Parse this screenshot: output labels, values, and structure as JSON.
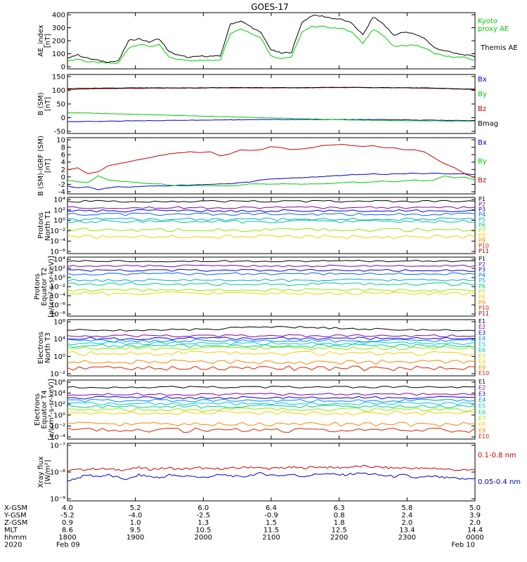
{
  "title": "GOES-17",
  "colors": {
    "black": "#000000",
    "green": "#00cc00",
    "blue": "#0000cc",
    "red": "#cc0000",
    "p_channels": [
      "#000000",
      "#8800aa",
      "#0000dd",
      "#0066ff",
      "#00aacc",
      "#00cc88",
      "#88ee00",
      "#ffcc00",
      "#ff8800",
      "#dd2200",
      "#990000"
    ],
    "e_channels": [
      "#000000",
      "#8800aa",
      "#0000dd",
      "#0088ff",
      "#00cccc",
      "#00cc88",
      "#88ee00",
      "#ffcc00",
      "#ff8800",
      "#dd2200",
      "#990000"
    ]
  },
  "chart_data": [
    {
      "type": "line",
      "ylabel": "AE_index\n[nT]",
      "yticks": [
        "400",
        "300",
        "200",
        "100",
        "0"
      ],
      "ylim": [
        0,
        400
      ],
      "series": [
        {
          "name": "Kyoto\nproxy AE",
          "color": "green",
          "values": [
            55,
            70,
            50,
            45,
            40,
            40,
            150,
            175,
            160,
            170,
            80,
            65,
            60,
            60,
            60,
            65,
            255,
            285,
            255,
            220,
            90,
            75,
            85,
            260,
            300,
            305,
            290,
            285,
            260,
            180,
            280,
            240,
            160,
            165,
            170,
            150,
            110,
            90,
            85,
            80,
            60
          ]
        },
        {
          "name": "Themis AE",
          "color": "black",
          "values": [
            80,
            100,
            75,
            60,
            50,
            55,
            200,
            215,
            190,
            215,
            120,
            95,
            80,
            90,
            90,
            90,
            320,
            340,
            300,
            255,
            135,
            110,
            120,
            330,
            380,
            375,
            360,
            350,
            320,
            240,
            370,
            320,
            240,
            260,
            250,
            220,
            150,
            130,
            110,
            100,
            85
          ]
        }
      ]
    },
    {
      "type": "line",
      "ylabel": "B (SM)\n[nT]",
      "yticks": [
        "150",
        "100",
        "50",
        "0",
        "-50"
      ],
      "ylim": [
        -60,
        160
      ],
      "series": [
        {
          "name": "Bx",
          "color": "blue",
          "values": [
            -16,
            -16,
            -15,
            -15,
            -14,
            -14,
            -13,
            -13,
            -12,
            -12,
            -11,
            -11,
            -10,
            -10,
            -10,
            -9,
            -9,
            -9,
            -8,
            -8,
            -8,
            -8,
            -8,
            -8,
            -8,
            -8,
            -8,
            -8,
            -8,
            -8,
            -8,
            -8,
            -9,
            -9,
            -10,
            -10,
            -10,
            -11,
            -11,
            -12,
            -12
          ]
        },
        {
          "name": "By",
          "color": "green",
          "values": [
            17,
            17,
            16,
            15,
            14,
            13,
            12,
            11,
            10,
            9,
            8,
            7,
            6,
            5,
            4,
            3,
            2,
            1,
            0,
            -1,
            -2,
            -3,
            -4,
            -5,
            -6,
            -7,
            -8,
            -9,
            -10,
            -10,
            -11,
            -11,
            -12,
            -12,
            -13,
            -13,
            -13,
            -14,
            -14,
            -14,
            -14
          ]
        },
        {
          "name": "Bz",
          "color": "red",
          "values": [
            104,
            105,
            106,
            107,
            107,
            108,
            108,
            108,
            109,
            109,
            109,
            109,
            109,
            109,
            110,
            110,
            110,
            110,
            110,
            110,
            110,
            110,
            110,
            110,
            110,
            111,
            111,
            111,
            111,
            111,
            110,
            110,
            110,
            110,
            109,
            109,
            108,
            107,
            106,
            105,
            104
          ]
        },
        {
          "name": "Bmag",
          "color": "black",
          "values": [
            107,
            108,
            108,
            109,
            109,
            109,
            110,
            110,
            110,
            110,
            110,
            110,
            110,
            110,
            111,
            111,
            111,
            111,
            111,
            111,
            111,
            111,
            111,
            111,
            111,
            112,
            112,
            112,
            112,
            112,
            111,
            111,
            111,
            111,
            110,
            110,
            109,
            108,
            107,
            106,
            105
          ]
        }
      ]
    },
    {
      "type": "line",
      "ylabel": "B (SM)-IGRF (SM)\n[nT]",
      "yticks": [
        "10",
        "8",
        "6",
        "4",
        "2",
        "0",
        "-2",
        "-4"
      ],
      "ylim": [
        -4,
        10
      ],
      "series": [
        {
          "name": "Bx",
          "color": "blue",
          "values": [
            -2,
            -2.5,
            -2.2,
            -3,
            -2.5,
            -2.2,
            -2.3,
            -2.2,
            -2,
            -2,
            -2,
            -1.8,
            -1.8,
            -1.7,
            -1.6,
            -1.5,
            -1.5,
            -1.2,
            -1,
            -0.5,
            -0.3,
            -0.2,
            0,
            0,
            0.2,
            0.3,
            0.5,
            0.6,
            0.8,
            0.8,
            1,
            0.8,
            1,
            1,
            1.2,
            1,
            1.2,
            1,
            1,
            1,
            0.8
          ]
        },
        {
          "name": "By",
          "color": "green",
          "values": [
            -0.5,
            -1,
            -1.2,
            0.5,
            -0.5,
            -0.8,
            -1,
            -1.2,
            -1.5,
            -1.5,
            -1.8,
            -2,
            -2,
            -1.9,
            -2,
            -2,
            -2,
            -1.8,
            -1.5,
            -1.5,
            -1.6,
            -1.5,
            -1.5,
            -1.6,
            -1.5,
            -1.5,
            -1.4,
            -1.2,
            -1,
            -1.2,
            -1,
            -0.8,
            -1,
            -0.8,
            -0.5,
            -0.8,
            -0.5,
            0.5,
            0,
            0.2,
            -0.5
          ]
        },
        {
          "name": "Bz",
          "color": "red",
          "values": [
            2,
            2.5,
            1,
            1.5,
            3,
            3.5,
            4,
            4.5,
            5,
            5.5,
            6,
            6.2,
            6.5,
            6.3,
            6.5,
            5.5,
            6,
            7,
            6.8,
            7,
            7.8,
            7.5,
            7,
            7.2,
            7.5,
            8,
            8.2,
            8.3,
            8,
            7.8,
            8,
            7.5,
            7.5,
            7,
            7,
            6.5,
            5,
            3.5,
            2.5,
            1,
            0
          ]
        }
      ]
    },
    {
      "type": "line",
      "ylabel": "Protons\nNorth T1",
      "yscale": "log",
      "yticks": [
        "10⁴",
        "10²",
        "10⁰",
        "10⁻²",
        "10⁻⁴",
        "10⁻⁶"
      ],
      "ylim": [
        -6,
        4
      ],
      "series": [
        {
          "name": "P1",
          "color_index": 0,
          "values": [
            3.3
          ]
        },
        {
          "name": "P2",
          "color_index": 1,
          "values": [
            2.2
          ]
        },
        {
          "name": "P3",
          "color_index": 2,
          "values": [
            1.6
          ]
        },
        {
          "name": "P4",
          "color_index": 3,
          "values": [
            1.0
          ]
        },
        {
          "name": "P5",
          "color_index": 4,
          "values": [
            0.1
          ]
        },
        {
          "name": "P6",
          "color_index": 5,
          "values": [
            -0.3
          ]
        },
        {
          "name": "P7",
          "color_index": 6,
          "values": [
            -1.8
          ]
        },
        {
          "name": "P8",
          "color_index": 7,
          "values": [
            -3.0
          ]
        },
        {
          "name": "P9",
          "color_index": 8,
          "values": []
        },
        {
          "name": "P10",
          "color_index": 9,
          "values": []
        },
        {
          "name": "P11",
          "color_index": 10,
          "values": []
        }
      ]
    },
    {
      "type": "line",
      "ylabel": "Protons\nEquator T2\n[p/(cm²-s-sr-keV)]",
      "yscale": "log",
      "yticks": [
        "10⁴",
        "10²",
        "10⁰",
        "10⁻²",
        "10⁻⁴",
        "10⁻⁶",
        "10⁻⁸"
      ],
      "ylim": [
        -8,
        4
      ],
      "series": [
        {
          "name": "P1",
          "color_index": 0,
          "values": [
            3.2
          ]
        },
        {
          "name": "P2",
          "color_index": 1,
          "values": [
            2.2
          ]
        },
        {
          "name": "P3",
          "color_index": 2,
          "values": [
            1.3
          ]
        },
        {
          "name": "P4",
          "color_index": 3,
          "values": [
            0.6
          ]
        },
        {
          "name": "P5",
          "color_index": 4,
          "values": [
            -0.7
          ]
        },
        {
          "name": "P6",
          "color_index": 5,
          "values": [
            -1.5
          ]
        },
        {
          "name": "P7",
          "color_index": 6,
          "values": [
            -2.7
          ]
        },
        {
          "name": "P8",
          "color_index": 7,
          "values": [
            -3.4
          ]
        },
        {
          "name": "P9",
          "color_index": 8,
          "values": []
        },
        {
          "name": "P10",
          "color_index": 9,
          "values": []
        },
        {
          "name": "P11",
          "color_index": 10,
          "values": []
        }
      ]
    },
    {
      "type": "line",
      "ylabel": "Electrons\nNorth T3",
      "yscale": "log",
      "yticks": [
        "10⁸",
        "10⁴",
        "10⁰",
        "10⁻²"
      ],
      "ylim": [
        -3,
        6
      ],
      "series": [
        {
          "name": "E1",
          "color_index": 0,
          "values": [
            4.3
          ]
        },
        {
          "name": "E2",
          "color_index": 1,
          "values": [
            3.4
          ]
        },
        {
          "name": "E3",
          "color_index": 2,
          "values": [
            3.0
          ]
        },
        {
          "name": "E4",
          "color_index": 3,
          "values": [
            2.6
          ]
        },
        {
          "name": "E5",
          "color_index": 4,
          "values": [
            2.2
          ]
        },
        {
          "name": "E6",
          "color_index": 5,
          "values": [
            1.8
          ]
        },
        {
          "name": "E7",
          "color_index": 6,
          "values": [
            1.4
          ]
        },
        {
          "name": "E8",
          "color_index": 7,
          "values": [
            0.6
          ]
        },
        {
          "name": "E9",
          "color_index": 8,
          "values": [
            -0.8
          ]
        },
        {
          "name": "E10",
          "color_index": 9,
          "values": [
            -1.8
          ]
        }
      ]
    },
    {
      "type": "line",
      "ylabel": "Electrons\nEquator T4\n[e/(cm²-s-sr-keV)]",
      "yscale": "log",
      "yticks": [
        "10⁶",
        "10⁴",
        "10²",
        "10⁰",
        "10⁻²",
        "10⁻⁴"
      ],
      "ylim": [
        -4,
        6
      ],
      "series": [
        {
          "name": "E1",
          "color_index": 0,
          "values": [
            4.8
          ]
        },
        {
          "name": "E2",
          "color_index": 1,
          "values": [
            3.6
          ]
        },
        {
          "name": "E3",
          "color_index": 2,
          "values": [
            3.0
          ]
        },
        {
          "name": "E4",
          "color_index": 3,
          "values": [
            2.5
          ]
        },
        {
          "name": "E5",
          "color_index": 4,
          "values": [
            2.0
          ]
        },
        {
          "name": "E6",
          "color_index": 5,
          "values": [
            1.5
          ]
        },
        {
          "name": "E7",
          "color_index": 6,
          "values": [
            1.0
          ]
        },
        {
          "name": "E8",
          "color_index": 7,
          "values": [
            0.4
          ]
        },
        {
          "name": "E9",
          "color_index": 8,
          "values": [
            -1.5
          ]
        },
        {
          "name": "E10",
          "color_index": 9,
          "values": [
            -2.5
          ]
        }
      ]
    },
    {
      "type": "line",
      "ylabel": "Xray flux\n[W/m²]",
      "yscale": "log",
      "yticks": [
        "10⁻⁷",
        "10⁻⁸",
        "10⁻⁹"
      ],
      "ylim": [
        -9,
        -7
      ],
      "series": [
        {
          "name": "0.1-0.8 nm",
          "color": "red",
          "values": [
            -7.95,
            -7.92,
            -7.9,
            -7.88,
            -7.9,
            -7.92,
            -7.9,
            -7.85,
            -7.9,
            -7.88,
            -7.86,
            -7.9,
            -7.88,
            -7.85,
            -7.9,
            -7.88,
            -7.87,
            -7.85,
            -7.82,
            -7.86,
            -7.88,
            -7.85,
            -7.84,
            -7.86,
            -7.83,
            -7.82,
            -7.85,
            -7.84,
            -7.82,
            -7.8,
            -7.82,
            -7.84,
            -7.86,
            -7.85,
            -7.87,
            -7.88,
            -7.86,
            -7.9,
            -7.92,
            -7.94,
            -7.92
          ]
        },
        {
          "name": "0.05-0.4 nm",
          "color": "blue",
          "values": [
            -8.3,
            -8.2,
            -8.1,
            -8.15,
            -8.1,
            -8.2,
            -8.25,
            -8.1,
            -8.15,
            -8.2,
            -8.1,
            -8.15,
            -8.12,
            -8.2,
            -8.15,
            -8.1,
            -8.12,
            -8.18,
            -8.1,
            -8.05,
            -8.1,
            -8.12,
            -8.08,
            -8.15,
            -8.1,
            -8.05,
            -8.08,
            -8.1,
            -8.06,
            -8.04,
            -8.08,
            -8.12,
            -8.15,
            -8.1,
            -8.2,
            -8.18,
            -8.15,
            -8.2,
            -8.22,
            -8.25,
            -8.2
          ]
        }
      ]
    }
  ],
  "footer": {
    "row_labels": [
      "X-GSM",
      "Y-GSM",
      "Z-GSM",
      "MLT",
      "hhmm",
      "2020"
    ],
    "columns": [
      [
        "4.0",
        "-5.2",
        "0.9",
        "8.6",
        "1800",
        "Feb 09"
      ],
      [
        "5.2",
        "-4.0",
        "1.0",
        "9.5",
        "1900",
        ""
      ],
      [
        "6.0",
        "-2.5",
        "1.3",
        "10.5",
        "2000",
        ""
      ],
      [
        "6.4",
        "-0.9",
        "1.5",
        "11.5",
        "2100",
        ""
      ],
      [
        "6.3",
        "0.8",
        "1.8",
        "12.5",
        "2200",
        ""
      ],
      [
        "5.8",
        "2.4",
        "2.0",
        "13.4",
        "2300",
        ""
      ],
      [
        "5.0",
        "3.9",
        "2.0",
        "14.4",
        "0000",
        "Feb 10"
      ]
    ]
  }
}
